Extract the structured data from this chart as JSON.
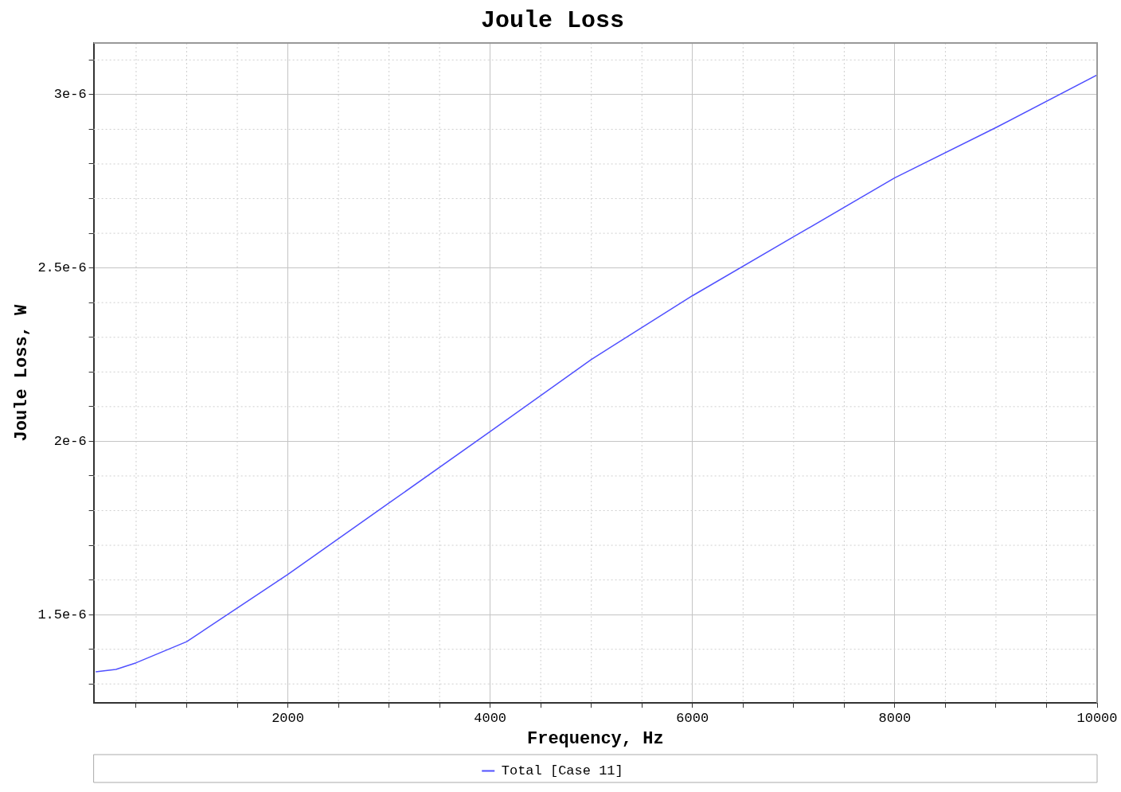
{
  "chart_data": {
    "type": "line",
    "title": "Joule Loss",
    "xlabel": "Frequency, Hz",
    "ylabel": "Joule Loss, W",
    "x": [
      100,
      300,
      500,
      1000,
      2000,
      3000,
      4000,
      5000,
      6000,
      7000,
      8000,
      9000,
      10000
    ],
    "series": [
      {
        "name": "Total [Case 11]",
        "color": "#5050ff",
        "values": [
          1.335e-06,
          1.342e-06,
          1.361e-06,
          1.422e-06,
          1.616e-06,
          1.822e-06,
          2.028e-06,
          2.236e-06,
          2.42e-06,
          2.59e-06,
          2.76e-06,
          2.905e-06,
          3.057e-06
        ]
      }
    ],
    "xlim": [
      80,
      10000
    ],
    "xticks": [
      {
        "value": 500,
        "label": null
      },
      {
        "value": 1000,
        "label": null
      },
      {
        "value": 1500,
        "label": null
      },
      2000,
      {
        "value": 2500,
        "label": null
      },
      {
        "value": 3000,
        "label": null
      },
      {
        "value": 3500,
        "label": null
      },
      4000,
      {
        "value": 4500,
        "label": null
      },
      {
        "value": 5000,
        "label": null
      },
      {
        "value": 5500,
        "label": null
      },
      6000,
      {
        "value": 6500,
        "label": null
      },
      {
        "value": 7000,
        "label": null
      },
      {
        "value": 7500,
        "label": null
      },
      8000,
      {
        "value": 8500,
        "label": null
      },
      {
        "value": 9000,
        "label": null
      },
      {
        "value": 9500,
        "label": null
      },
      10000
    ],
    "ylim": [
      1.245e-06,
      3.149e-06
    ],
    "yticks": [
      {
        "value": 1.3e-06,
        "label": null
      },
      {
        "value": 1.4e-06,
        "label": null
      },
      {
        "value": 1.5e-06,
        "label": "1.5e-6"
      },
      {
        "value": 1.6e-06,
        "label": null
      },
      {
        "value": 1.7e-06,
        "label": null
      },
      {
        "value": 1.8e-06,
        "label": null
      },
      {
        "value": 1.9e-06,
        "label": null
      },
      {
        "value": 2e-06,
        "label": "2e-6"
      },
      {
        "value": 2.1e-06,
        "label": null
      },
      {
        "value": 2.2e-06,
        "label": null
      },
      {
        "value": 2.3e-06,
        "label": null
      },
      {
        "value": 2.4e-06,
        "label": null
      },
      {
        "value": 2.5e-06,
        "label": "2.5e-6"
      },
      {
        "value": 2.6e-06,
        "label": null
      },
      {
        "value": 2.7e-06,
        "label": null
      },
      {
        "value": 2.8e-06,
        "label": null
      },
      {
        "value": 2.9e-06,
        "label": null
      },
      {
        "value": 3e-06,
        "label": "3e-6"
      },
      {
        "value": 3.1e-06,
        "label": null
      }
    ],
    "grid": true,
    "legend": "bottom",
    "marker": "none",
    "line_style": "solid"
  }
}
